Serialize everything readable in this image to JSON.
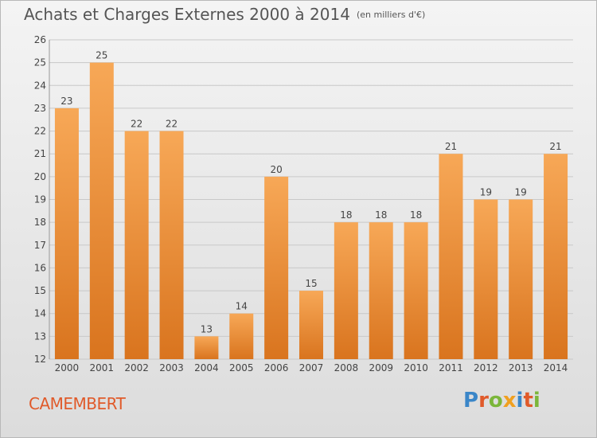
{
  "title": "Achats et Charges Externes 2000 à 2014",
  "unit": "(en milliers d'€)",
  "commune": "CAMEMBERT",
  "logo": {
    "text": "Proxiti",
    "letters": [
      {
        "ch": "P",
        "color": "#3a86c8"
      },
      {
        "ch": "r",
        "color": "#e05a2a"
      },
      {
        "ch": "o",
        "color": "#7bb63a"
      },
      {
        "ch": "x",
        "color": "#f0a020"
      },
      {
        "ch": "i",
        "color": "#3a86c8"
      },
      {
        "ch": "t",
        "color": "#e05a2a"
      },
      {
        "ch": "i",
        "color": "#7bb63a"
      }
    ]
  },
  "colors": {
    "bar_top": "#f7a857",
    "bar_bottom": "#d9741e",
    "grid": "#c8c8c8",
    "axis_text": "#444444"
  },
  "chart_data": {
    "type": "bar",
    "categories": [
      "2000",
      "2001",
      "2002",
      "2003",
      "2004",
      "2005",
      "2006",
      "2007",
      "2008",
      "2009",
      "2010",
      "2011",
      "2012",
      "2013",
      "2014"
    ],
    "values": [
      23,
      25,
      22,
      22,
      13,
      14,
      20,
      15,
      18,
      18,
      18,
      21,
      19,
      19,
      21
    ],
    "labels": [
      "23",
      "25",
      "22",
      "22",
      "13",
      "14",
      "20",
      "15",
      "18",
      "18",
      "18",
      "21",
      "19",
      "19",
      "21"
    ],
    "ylim": [
      12,
      26
    ],
    "yticks": [
      12,
      13,
      14,
      15,
      16,
      17,
      18,
      19,
      20,
      21,
      22,
      23,
      24,
      25,
      26
    ],
    "ytick_labels": [
      "12",
      "13",
      "14",
      "15",
      "16",
      "17",
      "18",
      "19",
      "20",
      "21",
      "22",
      "23",
      "24",
      "25",
      "26"
    ],
    "grid": true
  }
}
